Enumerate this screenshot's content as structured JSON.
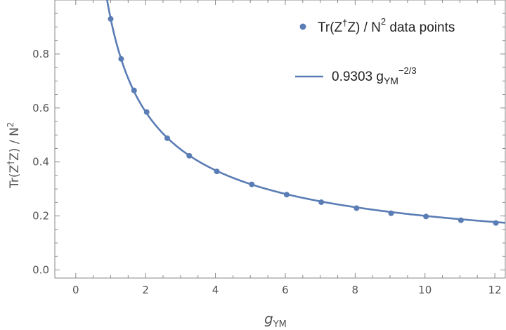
{
  "chart_data": {
    "type": "scatter",
    "xlabel": {
      "main": "g",
      "sub": "YM"
    },
    "ylabel": {
      "pre": "Tr(Z",
      "dagger": "†",
      "mid": "Z) / N",
      "sup": "2"
    },
    "xlim": [
      -0.6,
      12.3
    ],
    "ylim": [
      -0.03,
      1.0
    ],
    "xticks": [
      "0",
      "2",
      "4",
      "6",
      "8",
      "10",
      "12"
    ],
    "yticks": [
      "0.0",
      "0.2",
      "0.4",
      "0.6",
      "0.8"
    ],
    "grid": false,
    "legend_position": "top-right",
    "series": [
      {
        "name": "Tr(Z†Z) / N² data points",
        "kind": "points",
        "color": "#5b7db5",
        "x": [
          1.0,
          1.3,
          1.67,
          2.03,
          2.62,
          3.25,
          4.04,
          5.04,
          6.04,
          7.03,
          8.04,
          9.03,
          10.03,
          11.03,
          12.03
        ],
        "y": [
          0.93,
          0.782,
          0.665,
          0.585,
          0.488,
          0.423,
          0.365,
          0.317,
          0.279,
          0.251,
          0.229,
          0.21,
          0.198,
          0.184,
          0.174
        ]
      },
      {
        "name": "0.9303 g_YM^(−2/3)",
        "kind": "line",
        "color": "#5b7db5",
        "coefficient": 0.9303,
        "exponent": -0.6667
      }
    ],
    "legend": [
      {
        "pre": "Tr(Z",
        "dagger": "†",
        "post": "Z) / N",
        "sup": "2",
        "tail": " data points"
      },
      {
        "pre": "0.9303 g",
        "sub": "YM",
        "sup": "−2/3"
      }
    ]
  }
}
